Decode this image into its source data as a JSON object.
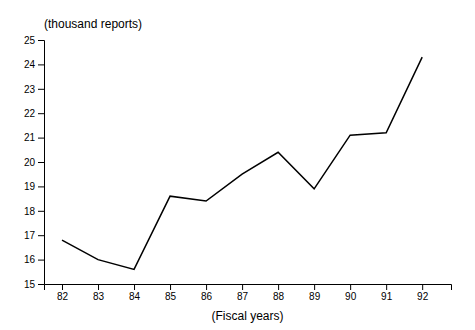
{
  "chart_data": {
    "type": "line",
    "x": [
      82,
      83,
      84,
      85,
      86,
      87,
      88,
      89,
      90,
      91,
      92
    ],
    "values": [
      16.8,
      16.0,
      15.6,
      18.6,
      18.4,
      19.5,
      20.4,
      18.9,
      21.1,
      21.2,
      24.3
    ],
    "color": "#000000",
    "xlim": [
      81.5,
      92.8
    ],
    "ylim": [
      15,
      25
    ],
    "xticks": [
      82,
      83,
      84,
      85,
      86,
      87,
      88,
      89,
      90,
      91,
      92
    ],
    "yticks": [
      15,
      16,
      17,
      18,
      19,
      20,
      21,
      22,
      23,
      24,
      25
    ],
    "xlabel": "(Fiscal years)",
    "ylabel": "(thousand reports)",
    "grid": false
  }
}
